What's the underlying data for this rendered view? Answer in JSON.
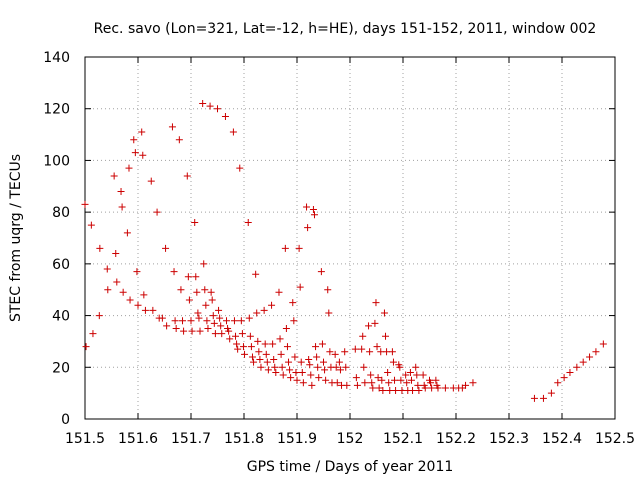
{
  "chart_data": {
    "type": "scatter",
    "title": "Rec. savo (Lon=321, Lat=-12, h=HE), days 151-152, 2011, window 002",
    "xlabel": "GPS time / Days of year 2011",
    "ylabel": "STEC from uqrg / TECUs",
    "xlim": [
      151.5,
      152.5
    ],
    "ylim": [
      0,
      140
    ],
    "xticks": [
      151.5,
      151.6,
      151.7,
      151.8,
      151.9,
      152.0,
      152.1,
      152.2,
      152.3,
      152.4,
      152.5
    ],
    "xtick_labels": [
      "151.5",
      "151.6",
      "151.7",
      "151.8",
      "151.9",
      "152",
      "152.1",
      "152.2",
      "152.3",
      "152.4",
      "152.5"
    ],
    "yticks": [
      0,
      20,
      40,
      60,
      80,
      100,
      120,
      140
    ],
    "ytick_labels": [
      "0",
      "20",
      "40",
      "60",
      "80",
      "100",
      "120",
      "140"
    ],
    "grid": true,
    "marker": "+",
    "marker_color": "#cc0000",
    "series": [
      {
        "name": "STEC",
        "points": [
          [
            151.5,
            83
          ],
          [
            151.502,
            28
          ],
          [
            151.512,
            75
          ],
          [
            151.515,
            33
          ],
          [
            151.527,
            40
          ],
          [
            151.528,
            66
          ],
          [
            151.542,
            58
          ],
          [
            151.543,
            50
          ],
          [
            151.555,
            94
          ],
          [
            151.558,
            64
          ],
          [
            151.56,
            53
          ],
          [
            151.568,
            88
          ],
          [
            151.57,
            82
          ],
          [
            151.572,
            49
          ],
          [
            151.58,
            72
          ],
          [
            151.583,
            97
          ],
          [
            151.585,
            46
          ],
          [
            151.592,
            108
          ],
          [
            151.595,
            103
          ],
          [
            151.598,
            57
          ],
          [
            151.6,
            44
          ],
          [
            151.607,
            111
          ],
          [
            151.609,
            102
          ],
          [
            151.611,
            48
          ],
          [
            151.614,
            42
          ],
          [
            151.625,
            92
          ],
          [
            151.628,
            42
          ],
          [
            151.636,
            80
          ],
          [
            151.64,
            39
          ],
          [
            151.646,
            39
          ],
          [
            151.652,
            66
          ],
          [
            151.654,
            36
          ],
          [
            151.665,
            113
          ],
          [
            151.668,
            57
          ],
          [
            151.67,
            38
          ],
          [
            151.672,
            35
          ],
          [
            151.678,
            108
          ],
          [
            151.681,
            50
          ],
          [
            151.684,
            38
          ],
          [
            151.686,
            34
          ],
          [
            151.693,
            94
          ],
          [
            151.695,
            55
          ],
          [
            151.697,
            46
          ],
          [
            151.7,
            38
          ],
          [
            151.702,
            34
          ],
          [
            151.707,
            76
          ],
          [
            151.709,
            55
          ],
          [
            151.711,
            49
          ],
          [
            151.713,
            41
          ],
          [
            151.715,
            39
          ],
          [
            151.717,
            34
          ],
          [
            151.722,
            122
          ],
          [
            151.724,
            60
          ],
          [
            151.726,
            50
          ],
          [
            151.728,
            44
          ],
          [
            151.73,
            38
          ],
          [
            151.732,
            35
          ],
          [
            151.736,
            121
          ],
          [
            151.738,
            49
          ],
          [
            151.74,
            46
          ],
          [
            151.742,
            40
          ],
          [
            151.744,
            37
          ],
          [
            151.746,
            33
          ],
          [
            151.75,
            120
          ],
          [
            151.752,
            42
          ],
          [
            151.754,
            39
          ],
          [
            151.756,
            36
          ],
          [
            151.758,
            33
          ],
          [
            151.765,
            117
          ],
          [
            151.767,
            38
          ],
          [
            151.769,
            35
          ],
          [
            151.771,
            34
          ],
          [
            151.773,
            31
          ],
          [
            151.78,
            111
          ],
          [
            151.782,
            38
          ],
          [
            151.784,
            32
          ],
          [
            151.786,
            29
          ],
          [
            151.788,
            27
          ],
          [
            151.792,
            97
          ],
          [
            151.795,
            38
          ],
          [
            151.797,
            33
          ],
          [
            151.799,
            28
          ],
          [
            151.801,
            25
          ],
          [
            151.808,
            76
          ],
          [
            151.81,
            39
          ],
          [
            151.812,
            32
          ],
          [
            151.814,
            28
          ],
          [
            151.816,
            24
          ],
          [
            151.818,
            22
          ],
          [
            151.822,
            56
          ],
          [
            151.824,
            41
          ],
          [
            151.826,
            30
          ],
          [
            151.828,
            26
          ],
          [
            151.83,
            23
          ],
          [
            151.832,
            20
          ],
          [
            151.838,
            42
          ],
          [
            151.84,
            29
          ],
          [
            151.842,
            25
          ],
          [
            151.844,
            22
          ],
          [
            151.846,
            19
          ],
          [
            151.852,
            44
          ],
          [
            151.854,
            29
          ],
          [
            151.856,
            23
          ],
          [
            151.858,
            20
          ],
          [
            151.86,
            18
          ],
          [
            151.866,
            49
          ],
          [
            151.868,
            31
          ],
          [
            151.87,
            25
          ],
          [
            151.872,
            20
          ],
          [
            151.874,
            17
          ],
          [
            151.878,
            66
          ],
          [
            151.88,
            35
          ],
          [
            151.882,
            28
          ],
          [
            151.884,
            22
          ],
          [
            151.886,
            19
          ],
          [
            151.888,
            16
          ],
          [
            151.892,
            45
          ],
          [
            151.894,
            38
          ],
          [
            151.896,
            24
          ],
          [
            151.898,
            18
          ],
          [
            151.9,
            15
          ],
          [
            151.904,
            66
          ],
          [
            151.906,
            51
          ],
          [
            151.908,
            22
          ],
          [
            151.91,
            18
          ],
          [
            151.912,
            14
          ],
          [
            151.918,
            82
          ],
          [
            151.92,
            74
          ],
          [
            151.922,
            23
          ],
          [
            151.924,
            21
          ],
          [
            151.926,
            17
          ],
          [
            151.928,
            13
          ],
          [
            151.931,
            81
          ],
          [
            151.933,
            79
          ],
          [
            151.935,
            28
          ],
          [
            151.937,
            24
          ],
          [
            151.939,
            20
          ],
          [
            151.941,
            16
          ],
          [
            151.946,
            57
          ],
          [
            151.948,
            29
          ],
          [
            151.95,
            22
          ],
          [
            151.952,
            19
          ],
          [
            151.954,
            15
          ],
          [
            151.958,
            50
          ],
          [
            151.96,
            41
          ],
          [
            151.962,
            26
          ],
          [
            151.964,
            20
          ],
          [
            151.966,
            14
          ],
          [
            151.972,
            25
          ],
          [
            151.974,
            20
          ],
          [
            151.976,
            14
          ],
          [
            151.98,
            22
          ],
          [
            151.982,
            19
          ],
          [
            151.984,
            13
          ],
          [
            151.99,
            26
          ],
          [
            151.992,
            20
          ],
          [
            151.994,
            13
          ],
          [
            152.01,
            27
          ],
          [
            152.012,
            16
          ],
          [
            152.014,
            13
          ],
          [
            152.022,
            27
          ],
          [
            152.024,
            32
          ],
          [
            152.026,
            20
          ],
          [
            152.028,
            14
          ],
          [
            152.035,
            36
          ],
          [
            152.037,
            26
          ],
          [
            152.039,
            17
          ],
          [
            152.041,
            14
          ],
          [
            152.043,
            12
          ],
          [
            152.047,
            37
          ],
          [
            152.049,
            45
          ],
          [
            152.051,
            28
          ],
          [
            152.053,
            16
          ],
          [
            152.055,
            12
          ],
          [
            152.058,
            26
          ],
          [
            152.06,
            15
          ],
          [
            152.062,
            11
          ],
          [
            152.065,
            41
          ],
          [
            152.067,
            32
          ],
          [
            152.069,
            26
          ],
          [
            152.071,
            18
          ],
          [
            152.073,
            14
          ],
          [
            152.075,
            11
          ],
          [
            152.08,
            26
          ],
          [
            152.082,
            22
          ],
          [
            152.084,
            15
          ],
          [
            152.086,
            11
          ],
          [
            152.092,
            21
          ],
          [
            152.094,
            20
          ],
          [
            152.096,
            15
          ],
          [
            152.098,
            11
          ],
          [
            152.105,
            17
          ],
          [
            152.107,
            14
          ],
          [
            152.109,
            11
          ],
          [
            152.114,
            18
          ],
          [
            152.116,
            15
          ],
          [
            152.118,
            11
          ],
          [
            152.124,
            20
          ],
          [
            152.126,
            17
          ],
          [
            152.128,
            13
          ],
          [
            152.13,
            11
          ],
          [
            152.138,
            17
          ],
          [
            152.14,
            13
          ],
          [
            152.142,
            12
          ],
          [
            152.15,
            15
          ],
          [
            152.152,
            14
          ],
          [
            152.154,
            12
          ],
          [
            152.162,
            15
          ],
          [
            152.164,
            13
          ],
          [
            152.166,
            12
          ],
          [
            152.18,
            12
          ],
          [
            152.195,
            12
          ],
          [
            152.205,
            12
          ],
          [
            152.212,
            12
          ],
          [
            152.218,
            13
          ],
          [
            152.232,
            14
          ],
          [
            152.348,
            8
          ],
          [
            152.365,
            8
          ],
          [
            152.38,
            10
          ],
          [
            152.392,
            14
          ],
          [
            152.404,
            16
          ],
          [
            152.415,
            18
          ],
          [
            152.428,
            20
          ],
          [
            152.44,
            22
          ],
          [
            152.452,
            24
          ],
          [
            152.464,
            26
          ],
          [
            152.478,
            29
          ]
        ]
      }
    ]
  }
}
